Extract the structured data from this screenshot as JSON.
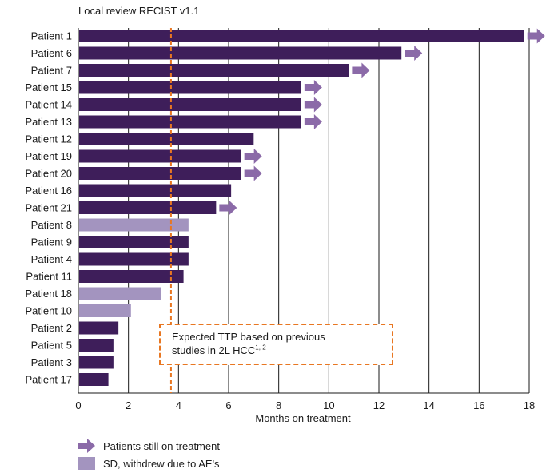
{
  "chart_data": {
    "type": "bar",
    "orientation": "horizontal",
    "title": "Local review RECIST v1.1",
    "xlabel": "Months on treatment",
    "ylabel": "",
    "xlim": [
      0,
      18
    ],
    "xticks": [
      0,
      2,
      4,
      6,
      8,
      10,
      12,
      14,
      16,
      18
    ],
    "grid": "vertical",
    "categories": [
      "Patient 1",
      "Patient 6",
      "Patient 7",
      "Patient 15",
      "Patient 14",
      "Patient 13",
      "Patient 12",
      "Patient 19",
      "Patient 20",
      "Patient 16",
      "Patient 21",
      "Patient 8",
      "Patient 9",
      "Patient 4",
      "Patient 11",
      "Patient 18",
      "Patient 10",
      "Patient 2",
      "Patient 5",
      "Patient 3",
      "Patient 17"
    ],
    "values": [
      17.8,
      12.9,
      10.8,
      8.9,
      8.9,
      8.9,
      7.0,
      6.5,
      6.5,
      6.1,
      5.5,
      4.4,
      4.4,
      4.4,
      4.2,
      3.3,
      2.1,
      1.6,
      1.4,
      1.4,
      1.2
    ],
    "still_on_treatment": [
      true,
      true,
      true,
      true,
      true,
      true,
      false,
      true,
      true,
      false,
      true,
      false,
      false,
      false,
      false,
      false,
      false,
      false,
      false,
      false,
      false
    ],
    "withdrew_due_to_ae": [
      false,
      false,
      false,
      false,
      false,
      false,
      false,
      false,
      false,
      false,
      false,
      true,
      false,
      false,
      false,
      true,
      true,
      false,
      false,
      false,
      false
    ],
    "reference_line": {
      "x": 3.7,
      "style": "dashed",
      "color": "#e87722"
    },
    "annotation": {
      "line1": "Expected TTP based on previous",
      "line2": "studies in 2L HCC",
      "sup": "1, 2"
    },
    "legend": [
      {
        "label": "Patients still on treatment",
        "marker": "arrow",
        "color": "#8b6aa8"
      },
      {
        "label": "SD, withdrew due to AE's",
        "marker": "square",
        "color": "#a394bf"
      }
    ],
    "colors": {
      "bar": "#3e1e5a",
      "bar_ae": "#a394bf",
      "arrow": "#8b6aa8",
      "grid": "#1a1a1a",
      "ref": "#e87722"
    }
  }
}
